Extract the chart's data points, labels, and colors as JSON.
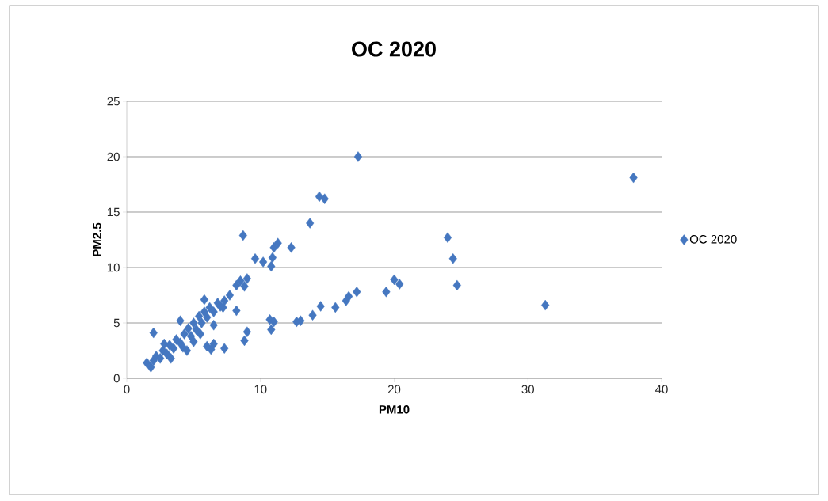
{
  "chart_data": {
    "type": "scatter",
    "title": "OC 2020",
    "xlabel": "PM10",
    "ylabel": "PM2.5",
    "xlim": [
      0,
      40
    ],
    "ylim": [
      0,
      25
    ],
    "xticks": [
      0,
      10,
      20,
      30,
      40
    ],
    "yticks": [
      0,
      5,
      10,
      15,
      20,
      25
    ],
    "grid": "y",
    "legend": "right",
    "marker": "diamond",
    "series": [
      {
        "name": "OC 2020",
        "color": "#4577c0",
        "x": [
          17.3,
          14.4,
          14.8,
          13.7,
          37.9,
          24.0,
          24.4,
          24.7,
          31.3,
          20.0,
          20.4,
          19.4,
          17.2,
          16.6,
          16.4,
          15.6,
          14.5,
          13.9,
          13.0,
          12.7,
          10.7,
          11.0,
          10.8,
          9.0,
          8.8,
          8.7,
          12.3,
          11.3,
          11.0,
          10.9,
          10.8,
          9.6,
          10.2,
          9.0,
          8.8,
          8.5,
          8.2,
          8.2,
          7.7,
          7.3,
          7.2,
          7.3,
          6.5,
          6.3,
          5.8,
          6.0,
          2.0,
          1.5,
          1.8,
          2.0,
          2.2,
          2.5,
          2.7,
          3.0,
          3.2,
          3.5,
          3.7,
          4.0,
          4.0,
          4.3,
          4.5,
          4.6,
          4.8,
          5.0,
          5.2,
          5.4,
          5.6,
          5.8,
          6.0,
          6.2,
          6.5,
          6.8,
          7.0,
          3.3,
          2.8,
          4.2,
          5.0,
          5.5,
          6.5
        ],
        "values": [
          20.0,
          16.4,
          16.2,
          14.0,
          18.1,
          12.7,
          10.8,
          8.4,
          6.6,
          8.9,
          8.5,
          7.8,
          7.8,
          7.4,
          7.0,
          6.4,
          6.5,
          5.7,
          5.2,
          5.1,
          5.3,
          5.1,
          4.4,
          4.2,
          3.4,
          12.9,
          11.8,
          12.2,
          11.8,
          10.9,
          10.1,
          10.8,
          10.5,
          9.0,
          8.3,
          8.8,
          8.4,
          6.1,
          7.5,
          7.0,
          6.4,
          2.7,
          3.1,
          2.6,
          7.1,
          2.9,
          4.1,
          1.4,
          1.0,
          1.6,
          2.0,
          1.8,
          2.5,
          2.2,
          3.0,
          2.7,
          3.5,
          3.2,
          5.2,
          4.0,
          2.5,
          4.5,
          3.8,
          5.0,
          4.4,
          5.6,
          5.0,
          6.0,
          5.5,
          6.4,
          6.0,
          6.8,
          6.5,
          1.8,
          3.1,
          2.8,
          3.3,
          4.0,
          4.8
        ]
      }
    ]
  }
}
